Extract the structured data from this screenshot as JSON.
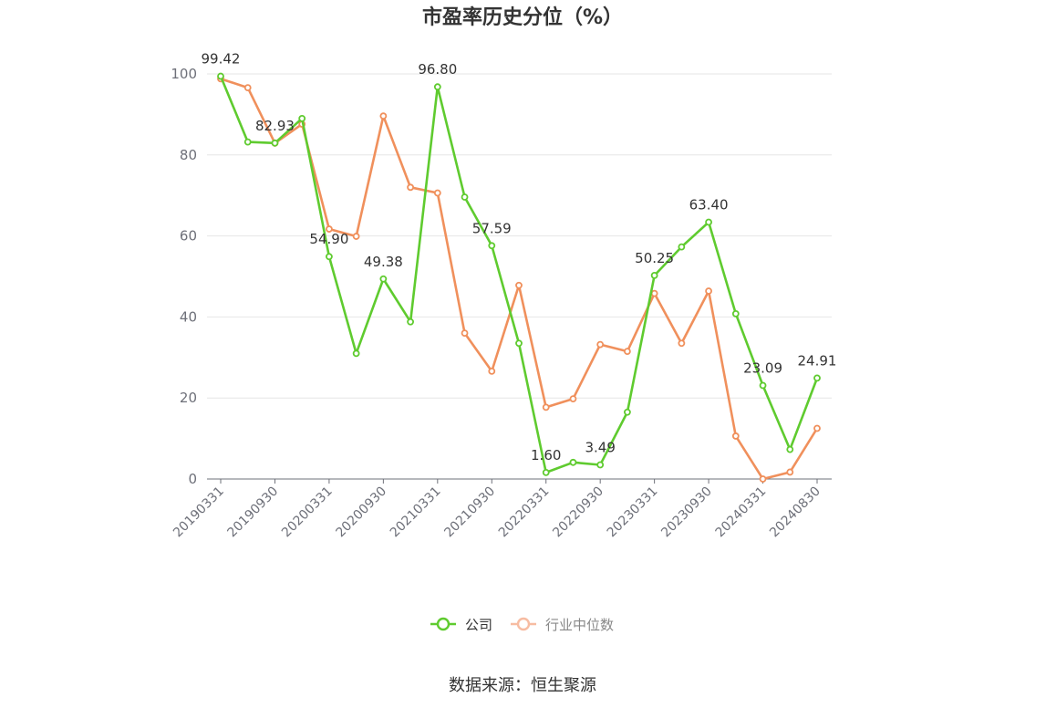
{
  "chart_data": {
    "type": "line",
    "title": "市盈率历史分位（%）",
    "source": "数据来源：恒生聚源",
    "xlabel": "",
    "ylabel": "",
    "ylim": [
      0,
      100
    ],
    "yticks": [
      0,
      20,
      40,
      60,
      80,
      100
    ],
    "grid": true,
    "legend_position": "bottom-center",
    "x": [
      "20190331",
      "20190630",
      "20190930",
      "20191231",
      "20200331",
      "20200630",
      "20200930",
      "20201231",
      "20210331",
      "20210630",
      "20210930",
      "20211231",
      "20220331",
      "20220630",
      "20220930",
      "20221231",
      "20230331",
      "20230630",
      "20230930",
      "20231231",
      "20240331",
      "20240630",
      "20240830"
    ],
    "x_tick_labels": [
      "20190331",
      "20190930",
      "20200331",
      "20200930",
      "20210331",
      "20210930",
      "20220331",
      "20220930",
      "20230331",
      "20230930",
      "20240331",
      "20240830"
    ],
    "series": [
      {
        "name": "公司",
        "color": "#5fcb2f",
        "values": [
          99.42,
          83.2,
          82.93,
          89.0,
          54.9,
          31.0,
          49.38,
          38.8,
          96.8,
          69.6,
          57.59,
          33.5,
          1.6,
          4.1,
          3.49,
          16.5,
          50.25,
          57.3,
          63.4,
          40.8,
          23.09,
          7.3,
          24.91
        ],
        "labels": {
          "0": "99.42",
          "2": "82.93",
          "4": "54.90",
          "6": "49.38",
          "8": "96.80",
          "10": "57.59",
          "12": "1.60",
          "14": "3.49",
          "16": "50.25",
          "18": "63.40",
          "20": "23.09",
          "22": "24.91"
        }
      },
      {
        "name": "行业中位数",
        "color": "#f0905c",
        "values": [
          98.8,
          96.6,
          82.9,
          87.6,
          61.7,
          59.9,
          89.6,
          72.0,
          70.6,
          36.0,
          26.6,
          47.8,
          17.7,
          19.8,
          33.2,
          31.5,
          45.8,
          33.5,
          46.4,
          10.6,
          0.0,
          1.7,
          12.5
        ]
      }
    ]
  }
}
